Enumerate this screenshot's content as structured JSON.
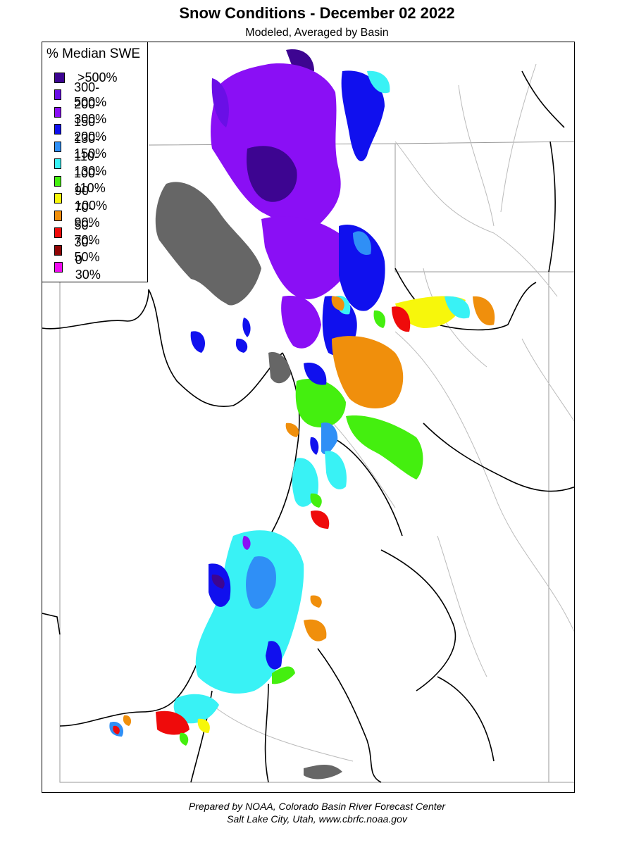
{
  "header": {
    "title": "Snow Conditions - December 02 2022",
    "subtitle": "Modeled, Averaged by Basin"
  },
  "legend": {
    "title": "% Median SWE",
    "items": [
      {
        "label": ">500%",
        "color": "#3d0591"
      },
      {
        "label": "300-500%",
        "color": "#6a0fe6"
      },
      {
        "label": "200-300%",
        "color": "#8a0ff5"
      },
      {
        "label": "150-200%",
        "color": "#1010ee"
      },
      {
        "label": "130-150%",
        "color": "#2f8ff6"
      },
      {
        "label": "110-130%",
        "color": "#39f2f5"
      },
      {
        "label": "100-110%",
        "color": "#44ef0f"
      },
      {
        "label": "90-100%",
        "color": "#f7f70b"
      },
      {
        "label": "70-90%",
        "color": "#f08f0c"
      },
      {
        "label": "50-70%",
        "color": "#ef0b0b"
      },
      {
        "label": "30-50%",
        "color": "#8f0505"
      },
      {
        "label": "0-30%",
        "color": "#f00cf0"
      }
    ]
  },
  "map": {
    "lake_color": "#666666",
    "boundary_color": "#000000",
    "river_color": "#bbbbbb"
  },
  "footer": {
    "line1": "Prepared by NOAA, Colorado Basin River Forecast Center",
    "line2": "Salt Lake City, Utah, www.cbrfc.noaa.gov"
  }
}
